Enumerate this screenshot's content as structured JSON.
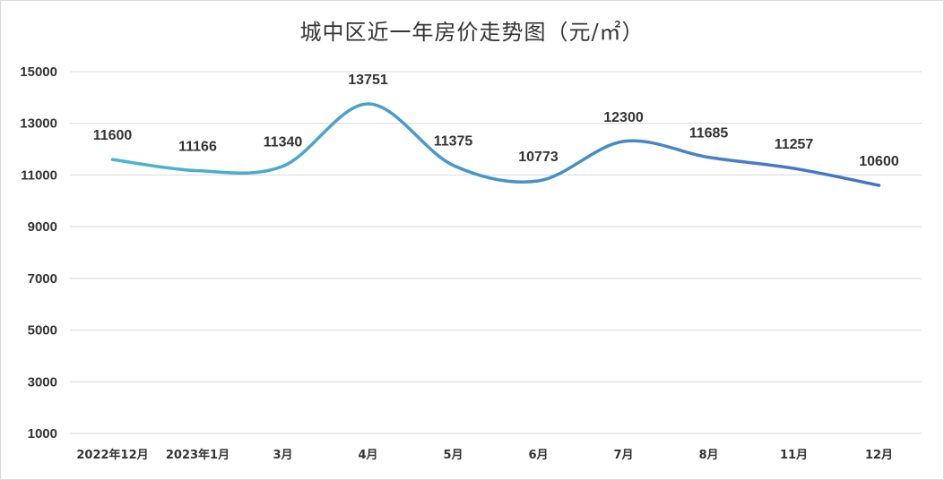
{
  "chart_data": {
    "type": "line",
    "title": "城中区近一年房价走势图（元/㎡）",
    "categories": [
      "2022年12月",
      "2023年1月",
      "3月",
      "4月",
      "5月",
      "6月",
      "7月",
      "8月",
      "11月",
      "12月"
    ],
    "values": [
      11600,
      11166,
      11340,
      13751,
      11375,
      10773,
      12300,
      11685,
      11257,
      10600
    ],
    "y_ticks": [
      "15000",
      "13000",
      "11000",
      "9000",
      "7000",
      "5000",
      "3000",
      "1000"
    ],
    "ylim": [
      1000,
      15000
    ],
    "grid": true,
    "smooth": true,
    "colors": {
      "line_start": "#4bb6cf",
      "line_end": "#4472c4",
      "grid": "#d9d9d9"
    }
  }
}
